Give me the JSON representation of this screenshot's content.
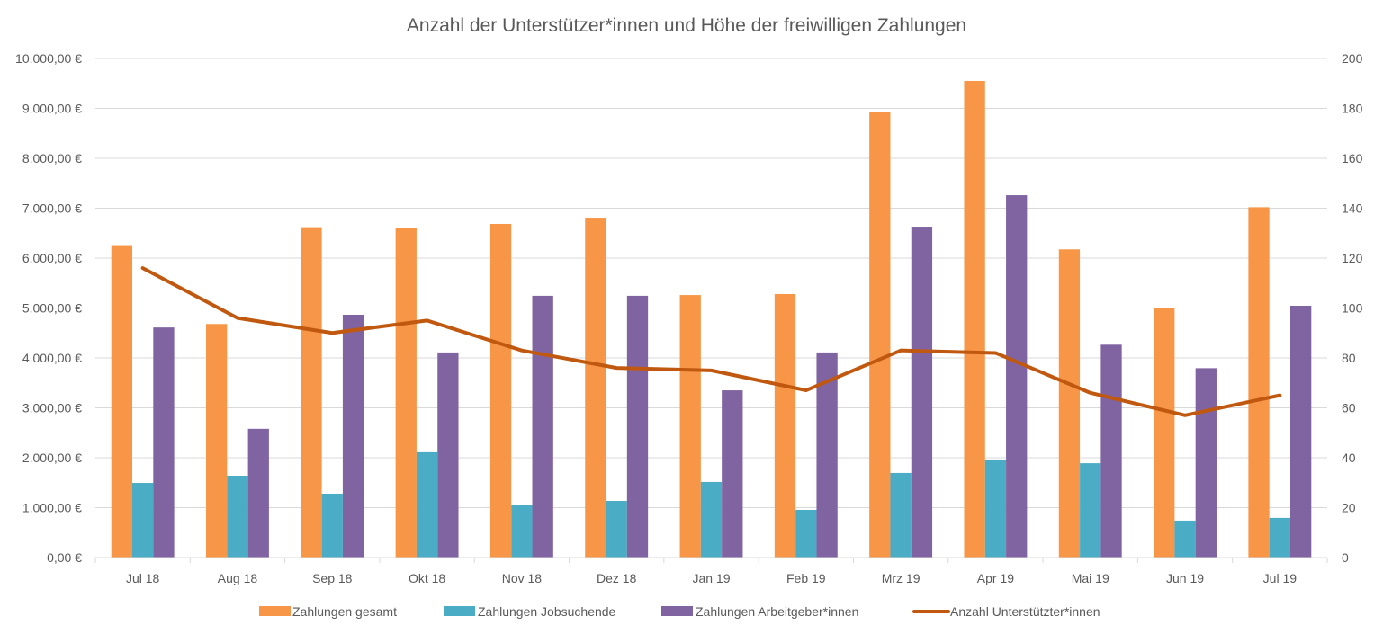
{
  "chart_data": {
    "type": "bar",
    "title": "Anzahl der Unterstützer*innen und Höhe der freiwilligen Zahlungen",
    "xlabel": "",
    "ylabel": "",
    "y2label": "",
    "categories": [
      "Jul 18",
      "Aug 18",
      "Sep 18",
      "Okt 18",
      "Nov 18",
      "Dez 18",
      "Jan 19",
      "Feb 19",
      "Mrz 19",
      "Apr 19",
      "Mai 19",
      "Jun 19",
      "Jul 19"
    ],
    "ylim": [
      0,
      10000
    ],
    "y2lim": [
      0,
      200
    ],
    "y_ticks": [
      0,
      1000,
      2000,
      3000,
      4000,
      5000,
      6000,
      7000,
      8000,
      9000,
      10000
    ],
    "y_tick_labels": [
      "0,00 €",
      "1.000,00 €",
      "2.000,00 €",
      "3.000,00 €",
      "4.000,00 €",
      "5.000,00 €",
      "6.000,00 €",
      "7.000,00 €",
      "8.000,00 €",
      "9.000,00 €",
      "10.000,00 €"
    ],
    "y2_ticks": [
      0,
      20,
      40,
      60,
      80,
      100,
      120,
      140,
      160,
      180,
      200
    ],
    "y2_tick_labels": [
      "0",
      "20",
      "40",
      "60",
      "80",
      "100",
      "120",
      "140",
      "160",
      "180",
      "200"
    ],
    "grid": true,
    "legend_position": "bottom",
    "series": [
      {
        "name": "Zahlungen gesamt",
        "type": "bar",
        "axis": "left",
        "color": "#F79646",
        "values": [
          6260,
          4680,
          6620,
          6595,
          6685,
          6810,
          5260,
          5280,
          8920,
          9550,
          6175,
          5005,
          7020
        ]
      },
      {
        "name": "Zahlungen Jobsuchende",
        "type": "bar",
        "axis": "left",
        "color": "#4BACC6",
        "values": [
          1495,
          1640,
          1280,
          2110,
          1045,
          1135,
          1515,
          955,
          1695,
          1965,
          1890,
          740,
          795
        ]
      },
      {
        "name": "Zahlungen Arbeitgeber*innen",
        "type": "bar",
        "axis": "left",
        "color": "#8064A2",
        "values": [
          4610,
          2580,
          4865,
          4110,
          5245,
          5245,
          3350,
          4110,
          6630,
          7260,
          4265,
          3795,
          5045
        ]
      },
      {
        "name": "Anzahl Unterstützter*innen",
        "type": "line",
        "axis": "right",
        "color": "#C0580F",
        "values": [
          116,
          96,
          90,
          95,
          83,
          76,
          75,
          67,
          83,
          82,
          66,
          57,
          65
        ]
      }
    ]
  },
  "colors": {
    "grid": "#D9D9D9",
    "text": "#595959"
  }
}
